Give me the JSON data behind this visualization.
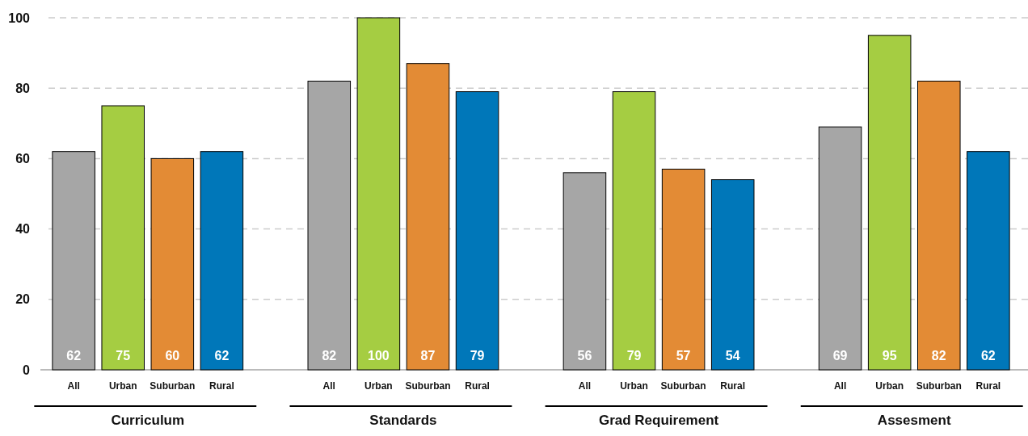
{
  "chart_data": {
    "type": "bar",
    "categories": [
      "Curriculum",
      "Standards",
      "Grad Requirement",
      "Assesment"
    ],
    "series": [
      {
        "name": "All",
        "color": "#a6a6a6",
        "values": [
          62,
          82,
          56,
          69
        ]
      },
      {
        "name": "Urban",
        "color": "#a5cd42",
        "values": [
          75,
          100,
          79,
          95
        ]
      },
      {
        "name": "Suburban",
        "color": "#e38b35",
        "values": [
          60,
          87,
          57,
          82
        ]
      },
      {
        "name": "Rural",
        "color": "#0077b9",
        "values": [
          62,
          79,
          54,
          62
        ]
      }
    ],
    "ylim": [
      0,
      100
    ],
    "yticks": [
      0,
      20,
      40,
      60,
      80,
      100
    ],
    "grid": "y",
    "line_style": "dashed",
    "data_labels": true
  }
}
